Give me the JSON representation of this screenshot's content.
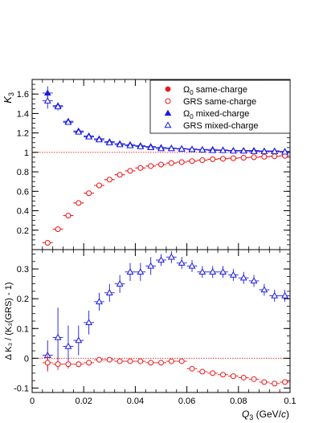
{
  "chart_data": [
    {
      "type": "scatter",
      "panel": "upper",
      "ylabel": "K",
      "ylabel_sub": "3",
      "ylim": [
        0.0,
        1.75
      ],
      "xlim": [
        0,
        0.1
      ],
      "yticks": [
        0.2,
        0.4,
        0.6,
        0.8,
        1.0,
        1.2,
        1.4,
        1.6
      ],
      "ytick_labels": [
        "0.2",
        "0.4",
        "0.6",
        "0.8",
        "1",
        "1.2",
        "1.4",
        "1.6"
      ],
      "reference_line": 1.0,
      "legend_position": "top-right",
      "legend": [
        {
          "label_pre": "Ω",
          "label_sub": "0",
          "label_post": " same-charge",
          "marker": "filled-circle",
          "color": "#e8191b"
        },
        {
          "label_pre": "GRS same-charge",
          "label_sub": "",
          "label_post": "",
          "marker": "open-circle",
          "color": "#e8191b"
        },
        {
          "label_pre": "Ω",
          "label_sub": "0",
          "label_post": " mixed-charge",
          "marker": "filled-triangle",
          "color": "#1a1ae0"
        },
        {
          "label_pre": "GRS mixed-charge",
          "label_sub": "",
          "label_post": "",
          "marker": "open-triangle",
          "color": "#1a1ae0"
        }
      ],
      "series": [
        {
          "name": "Ω0 same-charge",
          "marker": "filled-circle",
          "color": "#e8191b",
          "x": [
            0.006,
            0.01,
            0.014,
            0.018,
            0.022,
            0.026,
            0.03,
            0.034,
            0.038,
            0.042,
            0.046,
            0.05,
            0.054,
            0.058,
            0.062,
            0.066,
            0.07,
            0.074,
            0.078,
            0.082,
            0.086,
            0.09,
            0.094,
            0.098
          ],
          "y": [
            0.07,
            0.21,
            0.35,
            0.48,
            0.58,
            0.66,
            0.72,
            0.77,
            0.81,
            0.84,
            0.86,
            0.875,
            0.89,
            0.9,
            0.91,
            0.92,
            0.93,
            0.935,
            0.94,
            0.945,
            0.95,
            0.955,
            0.96,
            0.965
          ],
          "yerr": [
            0.02,
            0.02,
            0.02,
            0.02,
            0.015,
            0.015,
            0.01,
            0.01,
            0.01,
            0.01,
            0.01,
            0.01,
            0.01,
            0.01,
            0.01,
            0.01,
            0.01,
            0.01,
            0.01,
            0.01,
            0.01,
            0.01,
            0.01,
            0.01
          ]
        },
        {
          "name": "GRS same-charge",
          "marker": "open-circle",
          "color": "#e8191b",
          "x": [
            0.006,
            0.01,
            0.014,
            0.018,
            0.022,
            0.026,
            0.03,
            0.034,
            0.038,
            0.042,
            0.046,
            0.05,
            0.054,
            0.058,
            0.062,
            0.066,
            0.07,
            0.074,
            0.078,
            0.082,
            0.086,
            0.09,
            0.094,
            0.098
          ],
          "y": [
            0.07,
            0.21,
            0.35,
            0.48,
            0.58,
            0.66,
            0.72,
            0.77,
            0.81,
            0.84,
            0.86,
            0.875,
            0.89,
            0.9,
            0.91,
            0.92,
            0.93,
            0.935,
            0.94,
            0.945,
            0.95,
            0.955,
            0.96,
            0.965
          ],
          "yerr": [
            0.02,
            0.02,
            0.02,
            0.02,
            0.015,
            0.015,
            0.01,
            0.01,
            0.01,
            0.01,
            0.01,
            0.01,
            0.01,
            0.01,
            0.01,
            0.01,
            0.01,
            0.01,
            0.01,
            0.01,
            0.01,
            0.01,
            0.01,
            0.01
          ]
        },
        {
          "name": "Ω0 mixed-charge",
          "marker": "filled-triangle",
          "color": "#1a1ae0",
          "x": [
            0.006,
            0.01,
            0.014,
            0.018,
            0.022,
            0.026,
            0.03,
            0.034,
            0.038,
            0.042,
            0.046,
            0.05,
            0.054,
            0.058,
            0.062,
            0.066,
            0.07,
            0.074,
            0.078,
            0.082,
            0.086,
            0.09,
            0.094,
            0.098
          ],
          "y": [
            1.61,
            1.48,
            1.32,
            1.22,
            1.17,
            1.14,
            1.11,
            1.09,
            1.08,
            1.07,
            1.06,
            1.05,
            1.045,
            1.04,
            1.035,
            1.03,
            1.03,
            1.025,
            1.02,
            1.02,
            1.02,
            1.015,
            1.015,
            1.01
          ],
          "yerr": [
            0.07,
            0.03,
            0.02,
            0.015,
            0.01,
            0.01,
            0.01,
            0.01,
            0.01,
            0.01,
            0.01,
            0.01,
            0.01,
            0.01,
            0.01,
            0.01,
            0.01,
            0.01,
            0.01,
            0.01,
            0.01,
            0.01,
            0.01,
            0.01
          ]
        },
        {
          "name": "GRS mixed-charge",
          "marker": "open-triangle",
          "color": "#1a1ae0",
          "x": [
            0.006,
            0.01,
            0.014,
            0.018,
            0.022,
            0.026,
            0.03,
            0.034,
            0.038,
            0.042,
            0.046,
            0.05,
            0.054,
            0.058,
            0.062,
            0.066,
            0.07,
            0.074,
            0.078,
            0.082,
            0.086,
            0.09,
            0.094,
            0.098
          ],
          "y": [
            1.53,
            1.47,
            1.31,
            1.21,
            1.16,
            1.13,
            1.1,
            1.08,
            1.07,
            1.06,
            1.05,
            1.04,
            1.04,
            1.035,
            1.03,
            1.025,
            1.02,
            1.02,
            1.015,
            1.015,
            1.01,
            1.01,
            1.01,
            1.005
          ],
          "yerr": [
            0.08,
            0.04,
            0.02,
            0.015,
            0.01,
            0.01,
            0.01,
            0.01,
            0.01,
            0.01,
            0.01,
            0.01,
            0.01,
            0.01,
            0.01,
            0.01,
            0.01,
            0.01,
            0.01,
            0.01,
            0.01,
            0.01,
            0.01,
            0.01
          ]
        }
      ]
    },
    {
      "type": "scatter",
      "panel": "lower",
      "xlabel_pre": "Q",
      "xlabel_sub": "3",
      "xlabel_post": " (GeV/",
      "xlabel_italic": "c",
      "xlabel_close": ")",
      "ylabel": "Δ K₃ / (K₃(GRS) - 1)",
      "ylim": [
        -0.115,
        0.365
      ],
      "xlim": [
        0,
        0.1
      ],
      "xticks": [
        0,
        0.02,
        0.04,
        0.06,
        0.08,
        0.1
      ],
      "xtick_labels": [
        "0",
        "0.02",
        "0.04",
        "0.06",
        "0.08",
        "0.1"
      ],
      "yticks": [
        -0.1,
        0.0,
        0.1,
        0.2,
        0.3
      ],
      "ytick_labels": [
        "-0.1",
        "0",
        "0.1",
        "0.2",
        "0.3"
      ],
      "reference_line": 0.0,
      "series": [
        {
          "name": "mixed-charge",
          "marker": "open-triangle",
          "color": "#1a1ae0",
          "x": [
            0.006,
            0.01,
            0.014,
            0.018,
            0.022,
            0.026,
            0.03,
            0.034,
            0.038,
            0.042,
            0.046,
            0.05,
            0.054,
            0.058,
            0.062,
            0.066,
            0.07,
            0.074,
            0.078,
            0.082,
            0.086,
            0.09,
            0.094,
            0.098
          ],
          "y": [
            0.01,
            0.07,
            0.04,
            0.06,
            0.12,
            0.19,
            0.22,
            0.25,
            0.29,
            0.29,
            0.31,
            0.33,
            0.34,
            0.32,
            0.31,
            0.29,
            0.29,
            0.29,
            0.28,
            0.27,
            0.26,
            0.23,
            0.21,
            0.21
          ],
          "yerr": [
            0.05,
            0.1,
            0.07,
            0.05,
            0.04,
            0.03,
            0.03,
            0.03,
            0.03,
            0.03,
            0.03,
            0.02,
            0.02,
            0.02,
            0.02,
            0.02,
            0.02,
            0.02,
            0.02,
            0.02,
            0.02,
            0.02,
            0.02,
            0.02
          ]
        },
        {
          "name": "same-charge",
          "marker": "open-circle",
          "color": "#e8191b",
          "x": [
            0.006,
            0.01,
            0.014,
            0.018,
            0.022,
            0.026,
            0.03,
            0.034,
            0.038,
            0.042,
            0.046,
            0.05,
            0.054,
            0.058,
            0.062,
            0.066,
            0.07,
            0.074,
            0.078,
            0.082,
            0.086,
            0.09,
            0.094,
            0.098
          ],
          "y": [
            -0.015,
            -0.02,
            -0.02,
            -0.02,
            -0.015,
            -0.005,
            -0.005,
            -0.01,
            -0.01,
            -0.01,
            -0.015,
            -0.015,
            -0.01,
            -0.01,
            -0.035,
            -0.045,
            -0.05,
            -0.055,
            -0.06,
            -0.065,
            -0.07,
            -0.08,
            -0.085,
            -0.08
          ],
          "yerr": [
            0.03,
            0.02,
            0.015,
            0.01,
            0.01,
            0.008,
            0.008,
            0.008,
            0.008,
            0.008,
            0.008,
            0.008,
            0.008,
            0.008,
            0.008,
            0.008,
            0.008,
            0.008,
            0.008,
            0.008,
            0.008,
            0.008,
            0.008,
            0.008
          ]
        }
      ]
    }
  ]
}
